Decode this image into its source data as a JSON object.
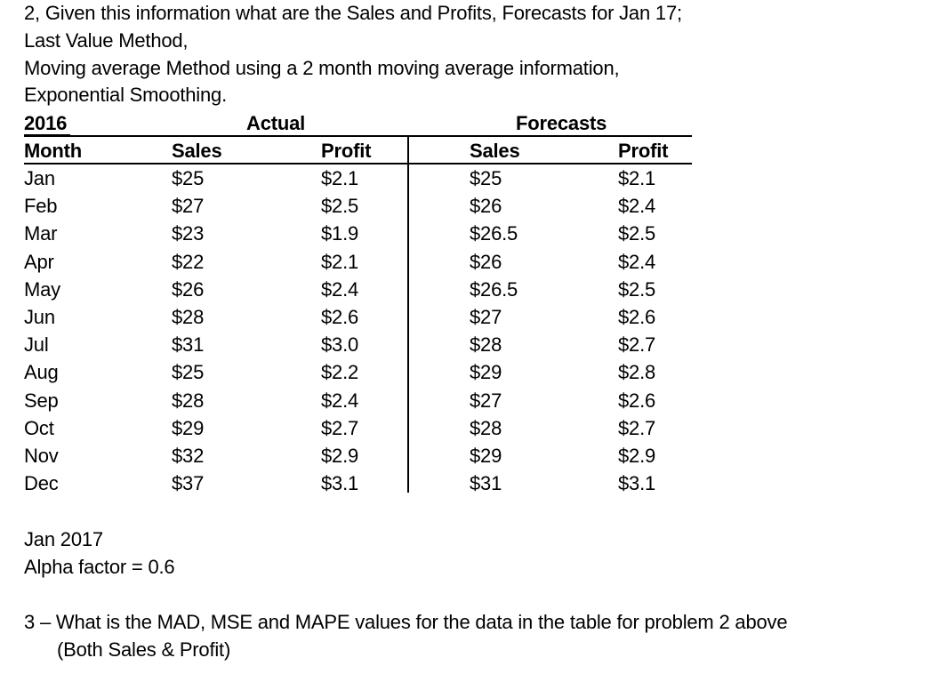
{
  "question2": {
    "line1": "2, Given this information what are the Sales and Profits, Forecasts for Jan 17;",
    "line2": "Last Value Method,",
    "line3": "Moving average Method using a 2 month moving average information,",
    "line4": "Exponential Smoothing."
  },
  "table": {
    "year_label": "2016",
    "actual_label": "Actual",
    "forecasts_label": "Forecasts",
    "col_month": "Month",
    "col_actual_sales": "Sales",
    "col_actual_profit": "Profit",
    "col_forecast_sales": "Sales",
    "col_forecast_profit": "Profit",
    "rows": [
      {
        "month": "Jan",
        "sales": "$25",
        "profit": "$2.1",
        "f_sales": "$25",
        "f_profit": "$2.1"
      },
      {
        "month": "Feb",
        "sales": "$27",
        "profit": "$2.5",
        "f_sales": "$26",
        "f_profit": "$2.4"
      },
      {
        "month": "Mar",
        "sales": "$23",
        "profit": "$1.9",
        "f_sales": "$26.5",
        "f_profit": "$2.5"
      },
      {
        "month": "Apr",
        "sales": "$22",
        "profit": "$2.1",
        "f_sales": "$26",
        "f_profit": "$2.4"
      },
      {
        "month": "May",
        "sales": "$26",
        "profit": "$2.4",
        "f_sales": "$26.5",
        "f_profit": "$2.5"
      },
      {
        "month": "Jun",
        "sales": "$28",
        "profit": "$2.6",
        "f_sales": "$27",
        "f_profit": "$2.6"
      },
      {
        "month": "Jul",
        "sales": "$31",
        "profit": "$3.0",
        "f_sales": "$28",
        "f_profit": "$2.7"
      },
      {
        "month": "Aug",
        "sales": "$25",
        "profit": "$2.2",
        "f_sales": "$29",
        "f_profit": "$2.8"
      },
      {
        "month": "Sep",
        "sales": "$28",
        "profit": "$2.4",
        "f_sales": "$27",
        "f_profit": "$2.6"
      },
      {
        "month": "Oct",
        "sales": "$29",
        "profit": "$2.7",
        "f_sales": "$28",
        "f_profit": "$2.7"
      },
      {
        "month": "Nov",
        "sales": "$32",
        "profit": "$2.9",
        "f_sales": "$29",
        "f_profit": "$2.9"
      },
      {
        "month": "Dec",
        "sales": "$37",
        "profit": "$3.1",
        "f_sales": "$31",
        "f_profit": "$3.1"
      }
    ]
  },
  "notes": {
    "jan2017": "Jan 2017",
    "alpha": "Alpha factor = 0.6"
  },
  "question3": {
    "line1": "3 – What is the MAD, MSE and MAPE  values for the data in the table for problem 2 above",
    "line2": "(Both Sales & Profit)"
  }
}
